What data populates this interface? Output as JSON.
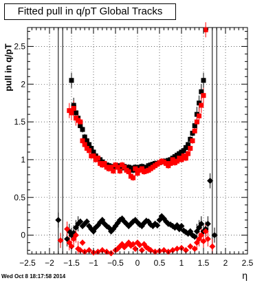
{
  "header": {
    "title": "Fitted pull in q/pT  Global Tracks"
  },
  "footer": {
    "datestamp": "Wed Oct  8 18:17:58 2014"
  },
  "chart_data": {
    "type": "scatter",
    "title": "Fitted pull in q/pT  Global Tracks",
    "xlabel": "η",
    "ylabel": "pull in q/pT",
    "xlim": [
      -2.5,
      2.5
    ],
    "ylim": [
      -0.25,
      2.75
    ],
    "grid": true,
    "x_ticks": [
      "−2.5",
      "−2",
      "−1.5",
      "−1",
      "−0.5",
      "0",
      "0.5",
      "1",
      "1.5",
      "2",
      "2.5"
    ],
    "y_ticks": [
      "0",
      "0.5",
      "1",
      "1.5",
      "2",
      "2.5"
    ],
    "colors": {
      "black": "#000000",
      "red": "#ff0000"
    },
    "series": [
      {
        "marker": "square",
        "color": "#000000",
        "x": [
          -1.5,
          -1.45,
          -1.4,
          -1.35,
          -1.3,
          -1.25,
          -1.2,
          -1.15,
          -1.1,
          -1.05,
          -1.0,
          -0.95,
          -0.9,
          -0.85,
          -0.8,
          -0.75,
          -0.7,
          -0.65,
          -0.6,
          -0.55,
          -0.5,
          -0.45,
          -0.4,
          -0.35,
          -0.3,
          -0.25,
          -0.2,
          -0.15,
          -0.1,
          -0.05,
          0.0,
          0.05,
          0.1,
          0.15,
          0.2,
          0.25,
          0.3,
          0.35,
          0.4,
          0.45,
          0.5,
          0.55,
          0.6,
          0.65,
          0.7,
          0.75,
          0.8,
          0.85,
          0.9,
          0.95,
          1.0,
          1.05,
          1.1,
          1.15,
          1.2,
          1.25,
          1.3,
          1.35,
          1.4,
          1.45,
          1.5
        ],
        "y": [
          2.05,
          1.72,
          1.62,
          1.55,
          1.45,
          1.4,
          1.3,
          1.25,
          1.2,
          1.15,
          1.1,
          1.05,
          1.02,
          1.0,
          0.97,
          0.95,
          0.93,
          0.92,
          0.91,
          0.9,
          0.9,
          0.92,
          0.88,
          0.89,
          0.91,
          0.87,
          0.9,
          0.89,
          0.86,
          0.9,
          0.88,
          0.9,
          0.91,
          0.9,
          0.89,
          0.92,
          0.93,
          0.94,
          0.95,
          0.95,
          0.96,
          0.97,
          0.98,
          0.98,
          0.99,
          1.0,
          1.02,
          1.04,
          1.06,
          1.08,
          1.1,
          1.12,
          1.16,
          1.2,
          1.27,
          1.35,
          1.45,
          1.6,
          1.75,
          1.9,
          2.05
        ]
      },
      {
        "marker": "square",
        "color": "#ff0000",
        "x": [
          -1.55,
          -1.5,
          -1.45,
          -1.4,
          -1.35,
          -1.3,
          -1.25,
          -1.2,
          -1.15,
          -1.1,
          -1.05,
          -1.0,
          -0.95,
          -0.9,
          -0.85,
          -0.8,
          -0.75,
          -0.7,
          -0.65,
          -0.6,
          -0.55,
          -0.5,
          -0.45,
          -0.4,
          -0.35,
          -0.3,
          -0.25,
          -0.2,
          -0.15,
          -0.1,
          -0.05,
          0.0,
          0.05,
          0.1,
          0.15,
          0.2,
          0.25,
          0.3,
          0.35,
          0.4,
          0.45,
          0.5,
          0.55,
          0.6,
          0.65,
          0.7,
          0.75,
          0.8,
          0.85,
          0.9,
          0.95,
          1.0,
          1.05,
          1.1,
          1.15,
          1.2,
          1.25,
          1.3,
          1.35,
          1.4,
          1.45,
          1.5,
          1.55
        ],
        "y": [
          1.65,
          1.62,
          1.68,
          1.55,
          1.52,
          1.5,
          1.25,
          1.2,
          1.15,
          1.12,
          1.05,
          1.05,
          1.0,
          1.02,
          0.95,
          0.93,
          0.95,
          0.9,
          0.88,
          0.9,
          0.85,
          0.93,
          0.9,
          0.85,
          0.93,
          0.9,
          0.86,
          0.84,
          0.78,
          0.76,
          0.88,
          0.82,
          0.86,
          0.88,
          0.84,
          0.85,
          0.86,
          0.88,
          0.9,
          0.92,
          0.94,
          0.96,
          0.98,
          0.97,
          0.95,
          0.92,
          0.95,
          1.0,
          0.96,
          0.98,
          1.02,
          1.0,
          1.05,
          1.02,
          1.08,
          1.15,
          1.25,
          1.38,
          1.5,
          1.58,
          1.72,
          1.85,
          2.72
        ]
      },
      {
        "marker": "diamond",
        "color": "#000000",
        "x": [
          -1.8,
          -1.6,
          -1.55,
          -1.5,
          -1.45,
          -1.4,
          -1.35,
          -1.3,
          -1.25,
          -1.2,
          -1.15,
          -1.1,
          -1.05,
          -1.0,
          -0.95,
          -0.9,
          -0.85,
          -0.8,
          -0.75,
          -0.7,
          -0.65,
          -0.6,
          -0.55,
          -0.5,
          -0.45,
          -0.4,
          -0.35,
          -0.3,
          -0.25,
          -0.2,
          -0.15,
          -0.1,
          -0.05,
          0.0,
          0.05,
          0.1,
          0.15,
          0.2,
          0.25,
          0.3,
          0.35,
          0.4,
          0.45,
          0.5,
          0.55,
          0.6,
          0.65,
          0.7,
          0.75,
          0.8,
          0.85,
          0.9,
          0.95,
          1.0,
          1.05,
          1.1,
          1.15,
          1.2,
          1.25,
          1.3,
          1.35,
          1.4,
          1.45,
          1.5,
          1.55,
          1.6,
          1.65,
          1.75
        ],
        "y": [
          0.2,
          -0.05,
          0.05,
          0.0,
          0.03,
          0.1,
          0.15,
          0.18,
          0.12,
          0.15,
          0.18,
          0.12,
          0.08,
          0.05,
          0.1,
          0.13,
          0.17,
          0.2,
          0.15,
          0.12,
          0.1,
          0.05,
          0.08,
          0.12,
          0.16,
          0.2,
          0.22,
          0.18,
          0.15,
          0.12,
          0.15,
          0.18,
          0.2,
          0.17,
          0.14,
          0.12,
          0.16,
          0.19,
          0.18,
          0.14,
          0.12,
          0.15,
          0.13,
          0.2,
          0.25,
          0.22,
          0.18,
          0.15,
          0.14,
          0.12,
          0.1,
          0.13,
          0.08,
          0.12,
          0.06,
          0.04,
          0.02,
          0.05,
          0.0,
          -0.02,
          0.05,
          0.1,
          0.15,
          0.05,
          0.08,
          0.15,
          0.72,
          0.0
        ]
      },
      {
        "marker": "diamond",
        "color": "#ff0000",
        "x": [
          -1.75,
          -1.6,
          -1.55,
          -1.5,
          -1.45,
          -1.4,
          -1.35,
          -1.3,
          -1.25,
          -1.2,
          -1.1,
          -1.0,
          -0.9,
          -0.8,
          -0.7,
          -0.6,
          -0.5,
          -0.45,
          -0.4,
          -0.35,
          -0.3,
          -0.25,
          -0.2,
          -0.15,
          -0.1,
          -0.05,
          0.0,
          0.05,
          0.1,
          0.15,
          0.2,
          0.25,
          0.3,
          0.4,
          0.5,
          0.6,
          0.7,
          0.8,
          0.9,
          1.0,
          1.1,
          1.2,
          1.3,
          1.35,
          1.4,
          1.45,
          1.5,
          1.55,
          1.6,
          1.7
        ],
        "y": [
          -0.07,
          0.08,
          -0.1,
          -0.15,
          -0.05,
          0.0,
          -0.18,
          -0.2,
          -0.1,
          -0.22,
          -0.2,
          -0.23,
          -0.22,
          -0.2,
          -0.22,
          -0.24,
          -0.2,
          -0.18,
          -0.15,
          -0.12,
          -0.16,
          -0.13,
          -0.1,
          -0.14,
          -0.12,
          -0.18,
          -0.1,
          -0.13,
          -0.2,
          -0.12,
          -0.16,
          -0.18,
          -0.2,
          -0.22,
          -0.21,
          -0.2,
          -0.22,
          -0.2,
          -0.18,
          -0.17,
          -0.2,
          -0.15,
          -0.18,
          -0.1,
          -0.05,
          0.0,
          -0.08,
          0.05,
          -0.05,
          -0.15
        ]
      }
    ]
  }
}
